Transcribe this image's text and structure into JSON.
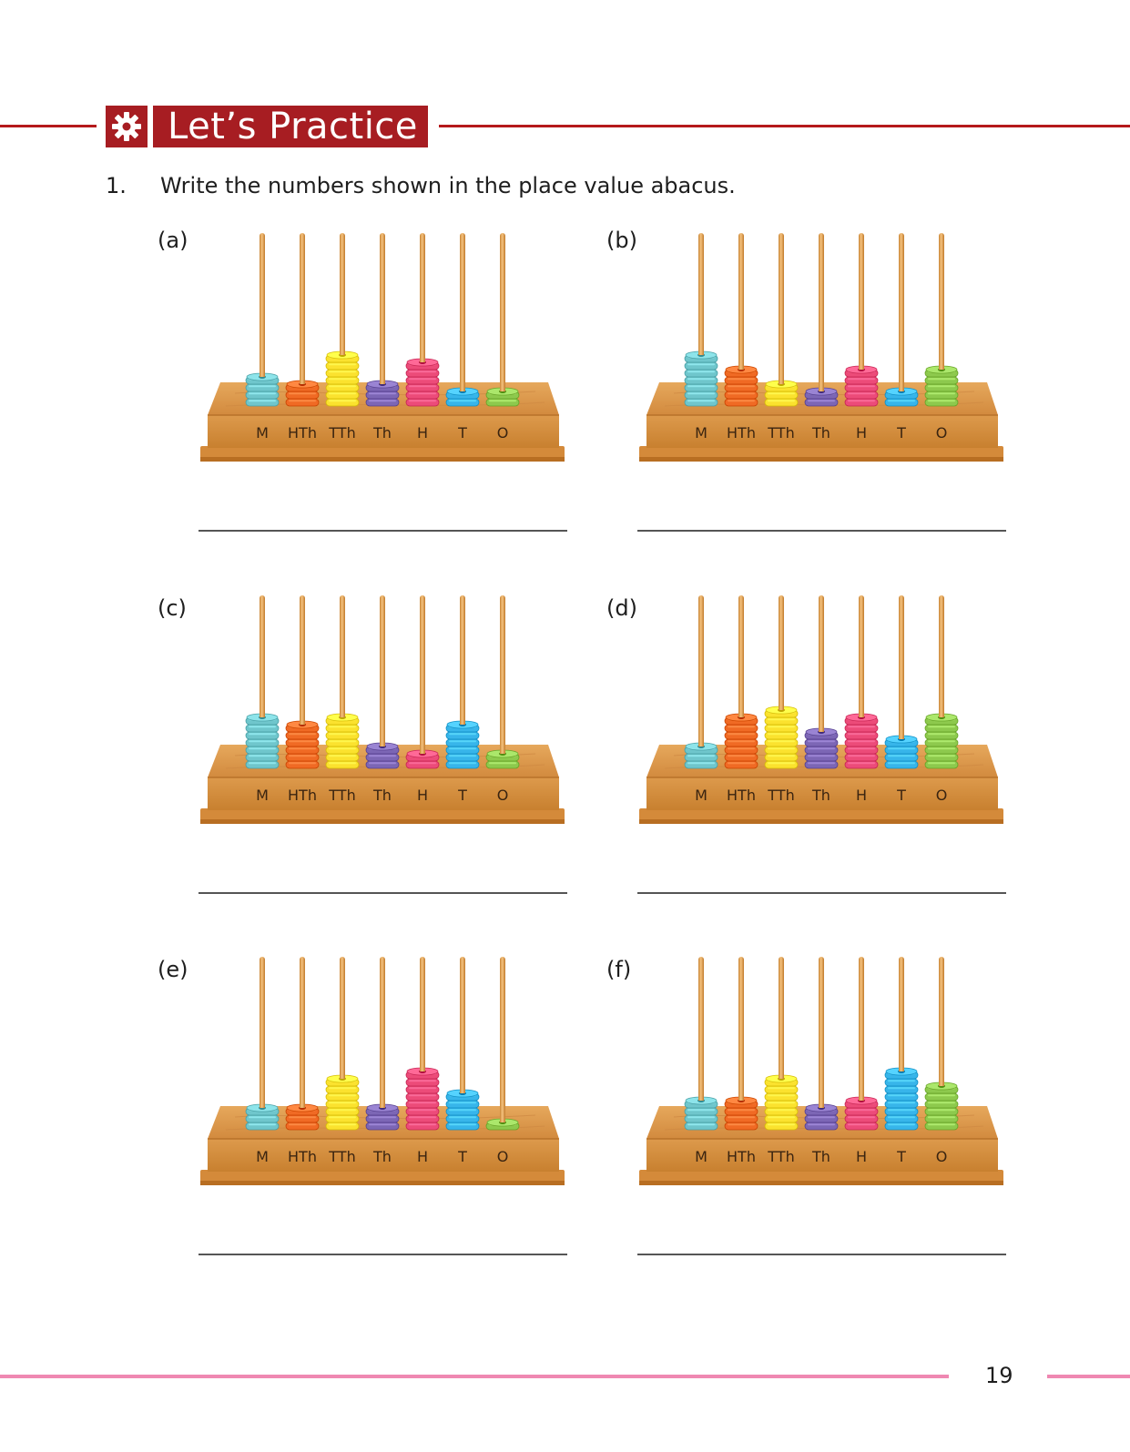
{
  "header": {
    "title": "Let’s Practice",
    "icon": "gear-icon",
    "color": "#a71d22"
  },
  "question": {
    "number": "1.",
    "text": "Write the numbers shown in the place value abacus."
  },
  "place_labels": [
    "M",
    "HTh",
    "TTh",
    "Th",
    "H",
    "T",
    "O"
  ],
  "bead_colors": [
    "#6fc6cc",
    "#f06a24",
    "#fbe22e",
    "#7c66b5",
    "#ec4b79",
    "#37b5ea",
    "#8dc94d"
  ],
  "abaci": [
    {
      "label": "(a)",
      "counts": [
        4,
        3,
        7,
        3,
        6,
        2,
        2
      ]
    },
    {
      "label": "(b)",
      "counts": [
        7,
        5,
        3,
        2,
        5,
        2,
        5
      ]
    },
    {
      "label": "(c)",
      "counts": [
        7,
        6,
        7,
        3,
        2,
        6,
        2
      ]
    },
    {
      "label": "(d)",
      "counts": [
        3,
        7,
        8,
        5,
        7,
        4,
        7
      ]
    },
    {
      "label": "(e)",
      "counts": [
        3,
        3,
        7,
        3,
        8,
        5,
        1
      ]
    },
    {
      "label": "(f)",
      "counts": [
        4,
        4,
        7,
        3,
        4,
        8,
        6
      ]
    }
  ],
  "footer": {
    "page_number": "19",
    "line_color": "#ef88b2"
  }
}
